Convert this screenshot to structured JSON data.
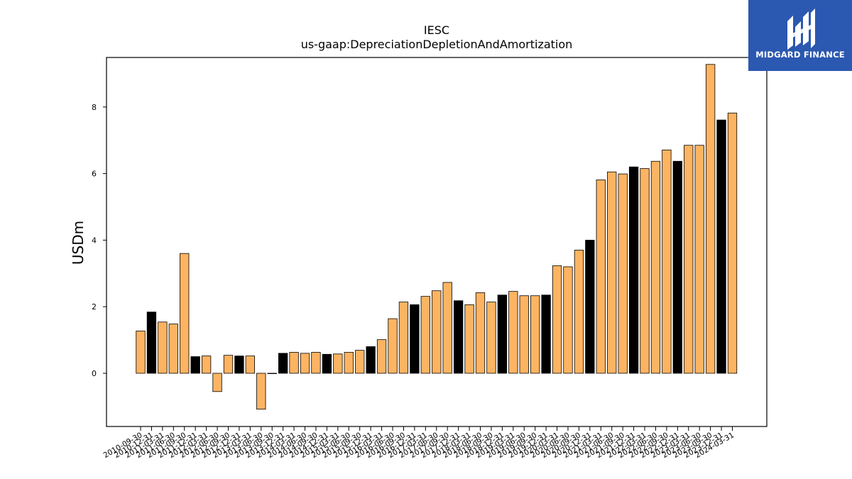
{
  "colors": {
    "primary": "#FDB462",
    "highlight": "#000000",
    "logo_bg": "#2B58B0"
  },
  "logo": {
    "text": "MIDGARD FINANCE"
  },
  "chart_data": {
    "type": "bar",
    "title": "IESC",
    "subtitle": "us-gaap:DepreciationDepletionAndAmortization",
    "xlabel": "",
    "ylabel": "USDm",
    "ylim": [
      -1.6,
      9.5
    ],
    "yticks": [
      0,
      2,
      4,
      6,
      8
    ],
    "grid": false,
    "categories": [
      "2010-09-30",
      "2010-12-31",
      "2011-03-31",
      "2011-06-30",
      "2011-09-30",
      "2011-12-31",
      "2012-03-31",
      "2012-06-30",
      "2012-09-30",
      "2012-12-31",
      "2013-03-31",
      "2013-06-30",
      "2013-09-30",
      "2013-12-31",
      "2014-03-31",
      "2014-06-30",
      "2014-09-30",
      "2014-12-31",
      "2015-03-31",
      "2015-06-30",
      "2015-09-30",
      "2015-12-31",
      "2016-03-31",
      "2016-06-30",
      "2016-09-30",
      "2016-12-31",
      "2017-03-31",
      "2017-06-30",
      "2017-09-30",
      "2017-12-31",
      "2018-03-31",
      "2018-06-30",
      "2018-09-30",
      "2018-12-31",
      "2019-03-31",
      "2019-06-30",
      "2019-09-30",
      "2019-12-31",
      "2020-03-31",
      "2020-06-30",
      "2020-09-30",
      "2020-12-31",
      "2021-03-31",
      "2021-06-30",
      "2021-09-30",
      "2021-12-31",
      "2022-03-31",
      "2022-06-30",
      "2022-09-30",
      "2022-12-31",
      "2023-03-31",
      "2023-06-30",
      "2023-09-30",
      "2023-12-31",
      "2024-03-31"
    ],
    "values": [
      1.27,
      1.84,
      1.54,
      1.48,
      3.6,
      0.5,
      0.52,
      -0.55,
      0.54,
      0.52,
      0.52,
      -1.08,
      0.0,
      0.6,
      0.63,
      0.6,
      0.63,
      0.57,
      0.58,
      0.63,
      0.69,
      0.8,
      1.01,
      1.64,
      2.14,
      2.06,
      2.31,
      2.48,
      2.73,
      2.18,
      2.06,
      2.42,
      2.14,
      2.35,
      2.46,
      2.33,
      2.33,
      2.35,
      3.23,
      3.2,
      3.7,
      4.0,
      5.81,
      6.05,
      5.99,
      6.2,
      6.15,
      6.37,
      6.71,
      6.37,
      6.85,
      6.85,
      9.28,
      7.61,
      7.82
    ],
    "highlight": [
      false,
      true,
      false,
      false,
      false,
      true,
      false,
      false,
      false,
      true,
      false,
      false,
      false,
      true,
      false,
      false,
      false,
      true,
      false,
      false,
      false,
      true,
      false,
      false,
      false,
      true,
      false,
      false,
      false,
      true,
      false,
      false,
      false,
      true,
      false,
      false,
      false,
      true,
      false,
      false,
      false,
      true,
      false,
      false,
      false,
      true,
      false,
      false,
      false,
      true,
      false,
      false,
      false,
      true,
      false
    ]
  }
}
